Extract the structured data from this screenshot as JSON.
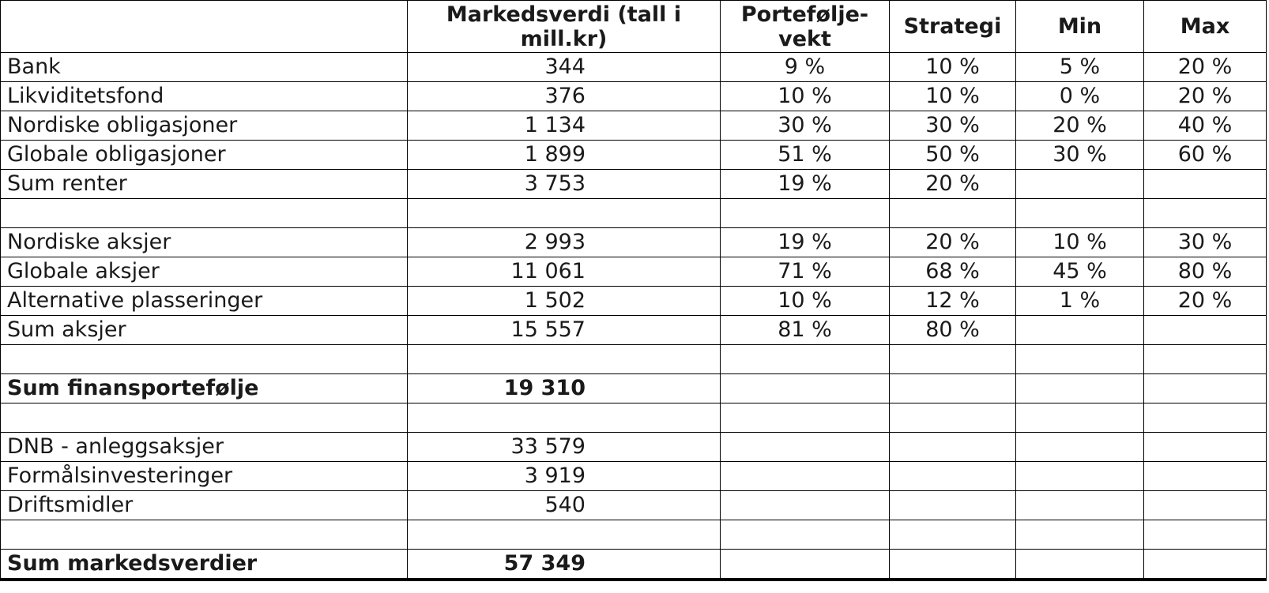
{
  "colors": {
    "text": "#1a1a1a",
    "border": "#000000",
    "background": "#ffffff"
  },
  "table": {
    "columns": [
      {
        "id": "label",
        "label": ""
      },
      {
        "id": "markedsverdi",
        "label": "Markedsverdi (tall i mill.kr)"
      },
      {
        "id": "portefoljevekt",
        "label": "Portefølje-vekt"
      },
      {
        "id": "strategi",
        "label": "Strategi"
      },
      {
        "id": "min",
        "label": "Min"
      },
      {
        "id": "max",
        "label": "Max"
      }
    ],
    "rows": [
      {
        "label": "Bank",
        "values": [
          "344",
          "9 %",
          "10 %",
          "5 %",
          "20 %"
        ],
        "bold": false
      },
      {
        "label": "Likviditetsfond",
        "values": [
          "376",
          "10 %",
          "10 %",
          "0 %",
          "20 %"
        ],
        "bold": false
      },
      {
        "label": "Nordiske obligasjoner",
        "values": [
          "1 134",
          "30 %",
          "30 %",
          "20 %",
          "40 %"
        ],
        "bold": false
      },
      {
        "label": "Globale obligasjoner",
        "values": [
          "1 899",
          "51 %",
          "50 %",
          "30 %",
          "60 %"
        ],
        "bold": false
      },
      {
        "label": "Sum renter",
        "values": [
          "3 753",
          "19 %",
          "20 %",
          "",
          ""
        ],
        "bold": false
      },
      {
        "label": "",
        "values": [
          "",
          "",
          "",
          "",
          ""
        ],
        "bold": false
      },
      {
        "label": "Nordiske aksjer",
        "values": [
          "2 993",
          "19 %",
          "20 %",
          "10 %",
          "30 %"
        ],
        "bold": false
      },
      {
        "label": "Globale aksjer",
        "values": [
          "11 061",
          "71 %",
          "68 %",
          "45 %",
          "80 %"
        ],
        "bold": false
      },
      {
        "label": "Alternative plasseringer",
        "values": [
          "1 502",
          "10 %",
          "12 %",
          "1 %",
          "20 %"
        ],
        "bold": false
      },
      {
        "label": "Sum aksjer",
        "values": [
          "15 557",
          "81 %",
          "80 %",
          "",
          ""
        ],
        "bold": false
      },
      {
        "label": "",
        "values": [
          "",
          "",
          "",
          "",
          ""
        ],
        "bold": false
      },
      {
        "label": "Sum finansportefølje",
        "values": [
          "19 310",
          "",
          "",
          "",
          ""
        ],
        "bold": true
      },
      {
        "label": "",
        "values": [
          "",
          "",
          "",
          "",
          ""
        ],
        "bold": false
      },
      {
        "label": "DNB - anleggsaksjer",
        "values": [
          "33 579",
          "",
          "",
          "",
          ""
        ],
        "bold": false
      },
      {
        "label": "Formålsinvesteringer",
        "values": [
          "3 919",
          "",
          "",
          "",
          ""
        ],
        "bold": false
      },
      {
        "label": "Driftsmidler",
        "values": [
          "540",
          "",
          "",
          "",
          ""
        ],
        "bold": false
      },
      {
        "label": "",
        "values": [
          "",
          "",
          "",
          "",
          ""
        ],
        "bold": false
      },
      {
        "label": "Sum markedsverdier",
        "values": [
          "57 349",
          "",
          "",
          "",
          ""
        ],
        "bold": true
      }
    ]
  }
}
